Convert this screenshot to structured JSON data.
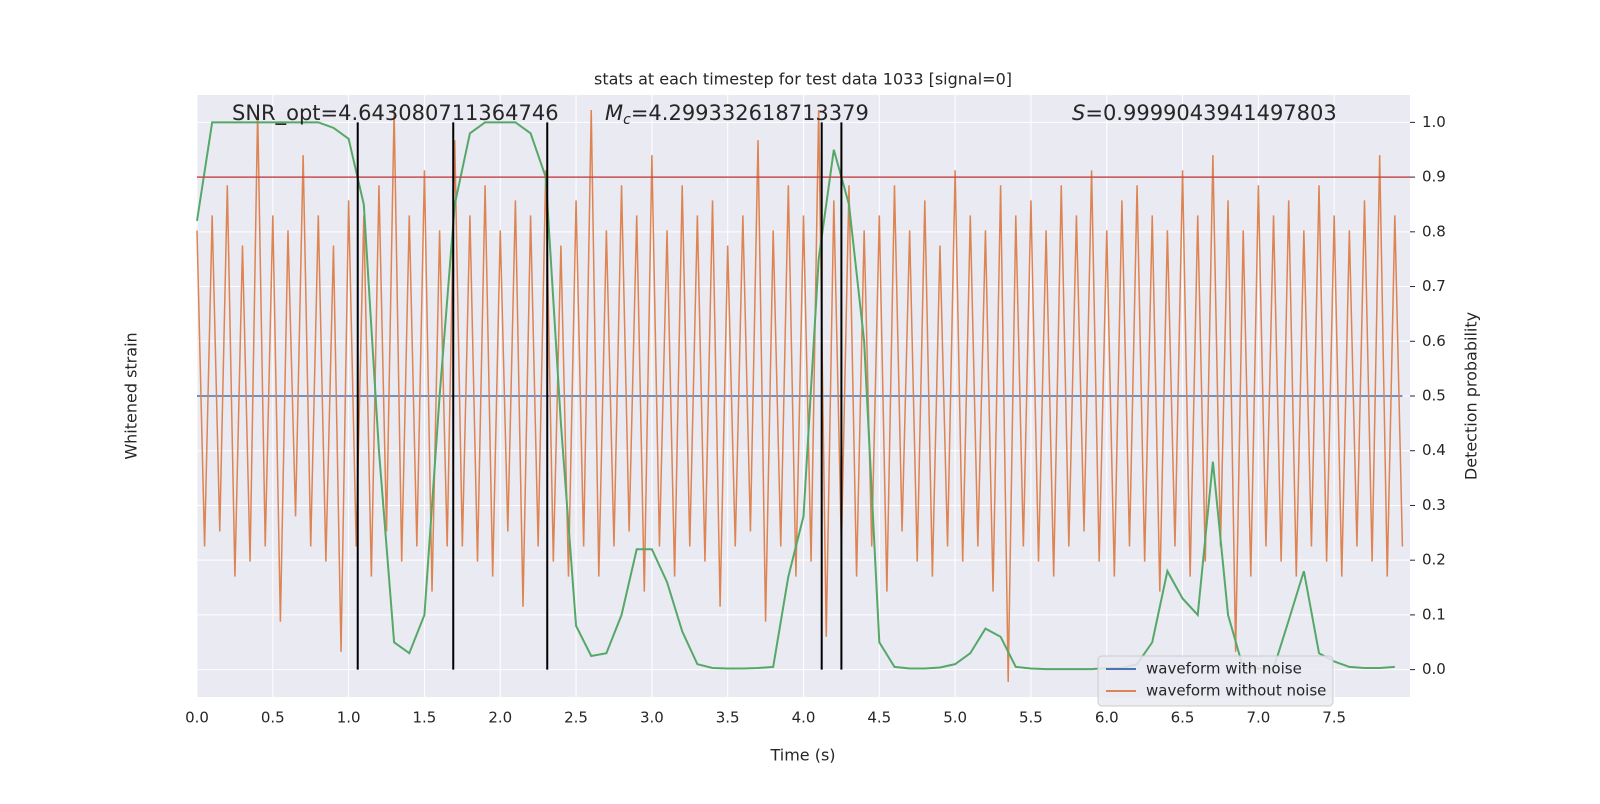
{
  "chart_data": {
    "type": "line",
    "title": "stats at each timestep for test data 1033 [signal=0]",
    "xlabel": "Time (s)",
    "ylabel": "Whitened strain",
    "y2label": "Detection probability",
    "annotations": {
      "snr": "SNR_opt=4.643080711364746",
      "mc_symbol": "M",
      "mc_subscript": "c",
      "mc_value": "=4.299332618713379",
      "s_symbol": "S",
      "s_value": "=0.9999043941497803"
    },
    "xlim": [
      0,
      8
    ],
    "ylim": [
      -1,
      1
    ],
    "y2lim": [
      -0.05,
      1.05
    ],
    "xticks": [
      {
        "value": 0,
        "label": "0.0"
      },
      0.5,
      {
        "value": 1,
        "label": "1.0"
      },
      1.5,
      {
        "value": 2,
        "label": "2.0"
      },
      2.5,
      {
        "value": 3,
        "label": "3.0"
      },
      3.5,
      {
        "value": 4,
        "label": "4.0"
      },
      4.5,
      {
        "value": 5,
        "label": "5.0"
      },
      5.5,
      {
        "value": 6,
        "label": "6.0"
      },
      6.5,
      {
        "value": 7,
        "label": "7.0"
      },
      7.5
    ],
    "y2ticks": [
      {
        "value": 0,
        "label": "0.0"
      },
      0.1,
      0.2,
      0.3,
      0.4,
      0.5,
      0.6,
      0.7,
      0.8,
      0.9,
      {
        "value": 1,
        "label": "1.0"
      }
    ],
    "grid": true,
    "legend": "lower right",
    "threshold": {
      "value": 0.9,
      "color": "#c44e52"
    },
    "vlines": {
      "x": [
        1.06,
        1.69,
        2.31,
        4.12,
        4.25
      ],
      "ymin": 0,
      "ymax": 1,
      "color": "#000000"
    },
    "series": [
      {
        "name": "waveform with noise",
        "color": "#4c72b0",
        "x": [
          0,
          7.95
        ],
        "values": [
          0,
          0
        ]
      },
      {
        "name": "waveform without noise",
        "color": "#dd8452",
        "x": [
          0,
          0.05,
          0.1,
          0.15,
          0.2,
          0.25,
          0.3,
          0.35,
          0.4,
          0.45,
          0.5,
          0.55,
          0.6,
          0.65,
          0.7,
          0.75,
          0.8,
          0.85,
          0.9,
          0.95,
          1,
          1.05,
          1.1,
          1.15,
          1.2,
          1.25,
          1.3,
          1.35,
          1.4,
          1.45,
          1.5,
          1.55,
          1.6,
          1.65,
          1.7,
          1.75,
          1.8,
          1.85,
          1.9,
          1.95,
          2,
          2.05,
          2.1,
          2.15,
          2.2,
          2.25,
          2.3,
          2.35,
          2.4,
          2.45,
          2.5,
          2.55,
          2.6,
          2.65,
          2.7,
          2.75,
          2.8,
          2.85,
          2.9,
          2.95,
          3,
          3.05,
          3.1,
          3.15,
          3.2,
          3.25,
          3.3,
          3.35,
          3.4,
          3.45,
          3.5,
          3.55,
          3.6,
          3.65,
          3.7,
          3.75,
          3.8,
          3.85,
          3.9,
          3.95,
          4,
          4.05,
          4.1,
          4.15,
          4.2,
          4.25,
          4.3,
          4.35,
          4.4,
          4.45,
          4.5,
          4.55,
          4.6,
          4.65,
          4.7,
          4.75,
          4.8,
          4.85,
          4.9,
          4.95,
          5,
          5.05,
          5.1,
          5.15,
          5.2,
          5.25,
          5.3,
          5.35,
          5.4,
          5.45,
          5.5,
          5.55,
          5.6,
          5.65,
          5.7,
          5.75,
          5.8,
          5.85,
          5.9,
          5.95,
          6,
          6.05,
          6.1,
          6.15,
          6.2,
          6.25,
          6.3,
          6.35,
          6.4,
          6.45,
          6.5,
          6.55,
          6.6,
          6.65,
          6.7,
          6.75,
          6.8,
          6.85,
          6.9,
          6.95,
          7,
          7.05,
          7.1,
          7.15,
          7.2,
          7.25,
          7.3,
          7.35,
          7.4,
          7.45,
          7.5,
          7.55,
          7.6,
          7.65,
          7.7,
          7.75,
          7.8,
          7.85,
          7.9,
          7.95
        ],
        "values": [
          0.55,
          -0.5,
          0.6,
          -0.45,
          0.7,
          -0.6,
          0.5,
          -0.55,
          0.95,
          -0.5,
          0.6,
          -0.75,
          0.55,
          -0.4,
          0.8,
          -0.5,
          0.6,
          -0.55,
          0.5,
          -0.85,
          0.65,
          -0.5,
          0.6,
          -0.6,
          0.7,
          -0.45,
          0.95,
          -0.55,
          0.6,
          -0.5,
          0.75,
          -0.65,
          0.55,
          -0.5,
          0.85,
          -0.5,
          0.6,
          -0.55,
          0.7,
          -0.6,
          0.55,
          -0.45,
          0.65,
          -0.7,
          0.6,
          -0.5,
          0.75,
          -0.55,
          0.5,
          -0.6,
          0.65,
          -0.5,
          0.95,
          -0.6,
          0.55,
          -0.5,
          0.7,
          -0.45,
          0.6,
          -0.65,
          0.8,
          -0.5,
          0.55,
          -0.6,
          0.7,
          -0.5,
          0.6,
          -0.55,
          0.65,
          -0.7,
          0.5,
          -0.5,
          0.6,
          -0.45,
          0.85,
          -0.75,
          0.55,
          -0.5,
          0.7,
          -0.6,
          0.6,
          -0.55,
          0.95,
          -0.8,
          0.65,
          -0.5,
          0.7,
          -0.6,
          0.55,
          -0.5,
          0.6,
          -0.65,
          0.7,
          -0.45,
          0.55,
          -0.55,
          0.65,
          -0.6,
          0.5,
          -0.5,
          0.75,
          -0.55,
          0.6,
          -0.5,
          0.55,
          -0.65,
          0.7,
          -0.95,
          0.6,
          -0.5,
          0.65,
          -0.55,
          0.55,
          -0.6,
          0.7,
          -0.5,
          0.6,
          -0.45,
          0.75,
          -0.55,
          0.55,
          -0.6,
          0.65,
          -0.5,
          0.7,
          -0.55,
          0.6,
          -0.65,
          0.55,
          -0.5,
          0.75,
          -0.6,
          0.6,
          -0.55,
          0.8,
          -0.5,
          0.65,
          -0.85,
          0.55,
          -0.6,
          0.7,
          -0.5,
          0.6,
          -0.55,
          0.65,
          -0.6,
          0.55,
          -0.5,
          0.7,
          -0.55,
          0.6,
          -0.6,
          0.55,
          -0.5,
          0.65,
          -0.55,
          0.8,
          -0.6,
          0.6,
          -0.5
        ]
      },
      {
        "name": "detection probability",
        "color": "#55a868",
        "axis": "y2",
        "x": [
          0,
          0.1,
          0.2,
          0.3,
          0.4,
          0.5,
          0.6,
          0.7,
          0.8,
          0.9,
          1,
          1.1,
          1.2,
          1.3,
          1.4,
          1.5,
          1.6,
          1.7,
          1.8,
          1.9,
          2,
          2.1,
          2.2,
          2.3,
          2.4,
          2.5,
          2.6,
          2.7,
          2.8,
          2.9,
          3,
          3.1,
          3.2,
          3.3,
          3.4,
          3.5,
          3.6,
          3.7,
          3.8,
          3.9,
          4,
          4.1,
          4.2,
          4.3,
          4.4,
          4.5,
          4.6,
          4.7,
          4.8,
          4.9,
          5,
          5.1,
          5.2,
          5.3,
          5.4,
          5.5,
          5.6,
          5.7,
          5.8,
          5.9,
          6,
          6.1,
          6.2,
          6.3,
          6.4,
          6.5,
          6.6,
          6.7,
          6.8,
          6.9,
          7,
          7.1,
          7.2,
          7.3,
          7.4,
          7.5,
          7.6,
          7.7,
          7.8,
          7.9
        ],
        "values": [
          0.82,
          1,
          1,
          1,
          1,
          1,
          1,
          1,
          1,
          0.99,
          0.97,
          0.85,
          0.4,
          0.05,
          0.03,
          0.1,
          0.5,
          0.85,
          0.98,
          1,
          1,
          1,
          0.98,
          0.9,
          0.45,
          0.08,
          0.025,
          0.03,
          0.1,
          0.22,
          0.22,
          0.16,
          0.07,
          0.01,
          0.003,
          0.002,
          0.002,
          0.003,
          0.005,
          0.17,
          0.28,
          0.75,
          0.95,
          0.85,
          0.6,
          0.05,
          0.005,
          0.002,
          0.002,
          0.004,
          0.01,
          0.03,
          0.075,
          0.06,
          0.005,
          0.002,
          0.001,
          0.001,
          0.001,
          0.001,
          0.003,
          0.003,
          0.01,
          0.05,
          0.18,
          0.13,
          0.1,
          0.38,
          0.1,
          0.003,
          0.002,
          0.002,
          0.09,
          0.18,
          0.03,
          0.015,
          0.005,
          0.003,
          0.003,
          0.005
        ]
      }
    ]
  }
}
